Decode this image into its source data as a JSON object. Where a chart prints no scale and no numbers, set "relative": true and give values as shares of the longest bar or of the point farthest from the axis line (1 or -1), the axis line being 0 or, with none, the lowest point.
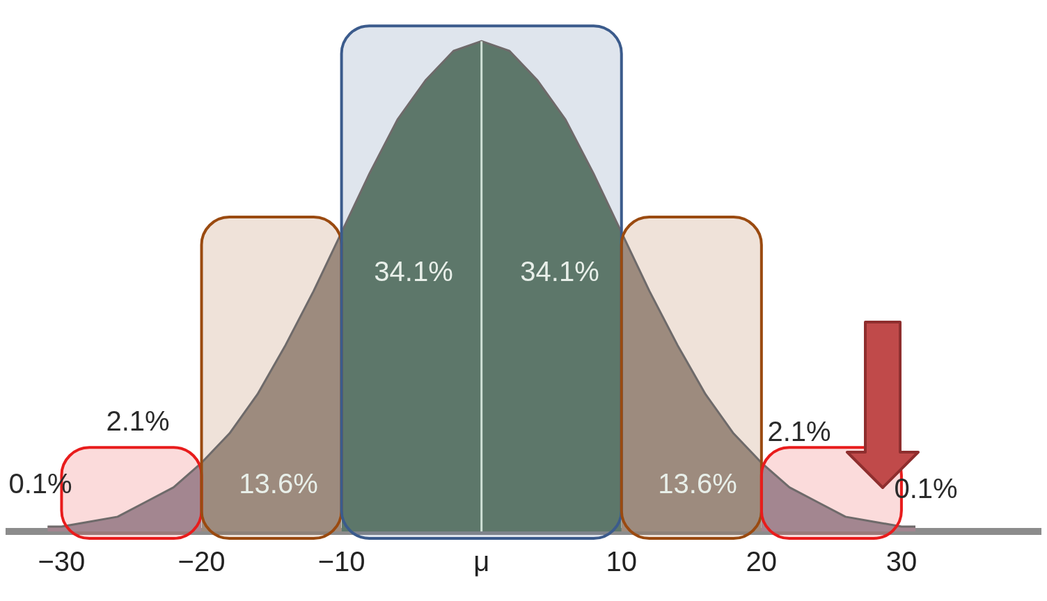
{
  "chart_data": {
    "type": "area",
    "relative": true,
    "xlim": [
      -34,
      40
    ],
    "xticks": [
      {
        "value": -30,
        "label": "−30"
      },
      {
        "value": -20,
        "label": "−20"
      },
      {
        "value": -10,
        "label": "−10"
      },
      {
        "value": 0,
        "label": "μ"
      },
      {
        "value": 10,
        "label": "10"
      },
      {
        "value": 20,
        "label": "20"
      },
      {
        "value": 30,
        "label": "30"
      }
    ],
    "series": [
      {
        "color": "#a38690",
        "x": [
          -31,
          -30,
          -28,
          -26,
          -24,
          -22,
          -20
        ],
        "values": [
          0.01,
          0.01,
          0.02,
          0.03,
          0.06,
          0.09,
          0.14
        ]
      },
      {
        "color": "#9d8b7e",
        "x": [
          -20,
          -18,
          -16,
          -14,
          -12,
          -10
        ],
        "values": [
          0.14,
          0.2,
          0.28,
          0.38,
          0.49,
          0.61
        ]
      },
      {
        "color": "#5d776a",
        "x": [
          -10,
          -8,
          -6,
          -4,
          -2,
          0,
          2,
          4,
          6,
          8,
          10
        ],
        "values": [
          0.61,
          0.73,
          0.84,
          0.92,
          0.98,
          1,
          0.98,
          0.92,
          0.84,
          0.73,
          0.61
        ]
      },
      {
        "color": "#9d8b7e",
        "x": [
          10,
          12,
          14,
          16,
          18,
          20
        ],
        "values": [
          0.61,
          0.49,
          0.38,
          0.28,
          0.2,
          0.14
        ]
      },
      {
        "color": "#a38690",
        "x": [
          20,
          22,
          24,
          26,
          28,
          30,
          31
        ],
        "values": [
          0.14,
          0.09,
          0.06,
          0.03,
          0.02,
          0.01,
          0.01
        ]
      }
    ],
    "bands": [
      {
        "axis": "x",
        "from": -30,
        "to": -20,
        "color": "#e81c1c"
      },
      {
        "axis": "x",
        "from": -20,
        "to": -10,
        "color": "#9a4a10"
      },
      {
        "axis": "x",
        "from": -10,
        "to": 10,
        "color": "#3b5b8c"
      },
      {
        "axis": "x",
        "from": 10,
        "to": 20,
        "color": "#9a4a10"
      },
      {
        "axis": "x",
        "from": 20,
        "to": 30,
        "color": "#e81c1c"
      }
    ],
    "ref_lines": [
      {
        "axis": "x",
        "value": 0,
        "color": "#cfe0d6"
      }
    ],
    "annotations": [
      "0.1%",
      "2.1%",
      "13.6%",
      "34.1%",
      "34.1%",
      "13.6%",
      "2.1%",
      "0.1%"
    ]
  }
}
